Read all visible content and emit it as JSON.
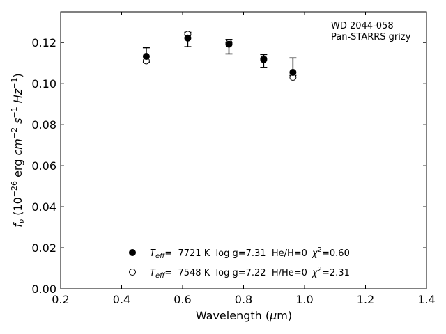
{
  "chart_data": {
    "type": "scatter",
    "annotation": [
      "WD 2044-058",
      "Pan-STARRS grizy"
    ],
    "xlabel": "Wavelength (",
    "xlabel_symbol": "μ",
    "xlabel_tail": "m)",
    "ylabel_parts": {
      "f": "f",
      "nu": "ν",
      "open": " (10",
      "exp26": "−26",
      "erg": " erg ",
      "cm": "cm",
      "expm2": "−2",
      "s": " s",
      "expm1a": "−1",
      "hz": " Hz",
      "expm1b": "−1",
      "close": ")"
    },
    "xlim": [
      0.2,
      1.4
    ],
    "ylim": [
      0.0,
      0.135
    ],
    "x_ticks": [
      0.2,
      0.4,
      0.6,
      0.8,
      1.0,
      1.2,
      1.4
    ],
    "x_tick_labels": [
      "0.2",
      "0.4",
      "0.6",
      "0.8",
      "1.0",
      "1.2",
      "1.4"
    ],
    "y_ticks": [
      0.0,
      0.02,
      0.04,
      0.06,
      0.08,
      0.1,
      0.12
    ],
    "y_tick_labels": [
      "0.00",
      "0.02",
      "0.04",
      "0.06",
      "0.08",
      "0.10",
      "0.12"
    ],
    "grid": false,
    "legend_placement": "lower-center",
    "observed": {
      "x": [
        0.481,
        0.617,
        0.752,
        0.866,
        0.962
      ],
      "y": [
        0.1141,
        0.1215,
        0.118,
        0.111,
        0.107
      ],
      "err_low": [
        0.1105,
        0.118,
        0.1145,
        0.1078,
        0.104
      ],
      "err_high": [
        0.1175,
        0.125,
        0.1215,
        0.1142,
        0.1125
      ]
    },
    "series": [
      {
        "marker": "filled-circle",
        "x": [
          0.481,
          0.617,
          0.752,
          0.866,
          0.962
        ],
        "y": [
          0.1133,
          0.1222,
          0.1192,
          0.1117,
          0.1055
        ],
        "legend": {
          "teff_sym": "T",
          "teff_sub": "eff",
          "eq": "=",
          "teff_val": "  7721 K",
          "logg": "  log g=7.31",
          "comp": "  He/H=0",
          "chi_sym": "χ",
          "chi_sup": "2",
          "chi_val": "=0.60"
        }
      },
      {
        "marker": "open-circle",
        "x": [
          0.481,
          0.617,
          0.752,
          0.866,
          0.962
        ],
        "y": [
          0.1111,
          0.124,
          0.1198,
          0.1121,
          0.1031
        ],
        "legend": {
          "teff_sym": "T",
          "teff_sub": "eff",
          "eq": "=",
          "teff_val": "  7548 K",
          "logg": "  log g=7.22",
          "comp": "  H/He=0",
          "chi_sym": "χ",
          "chi_sup": "2",
          "chi_val": "=2.31"
        }
      }
    ]
  }
}
